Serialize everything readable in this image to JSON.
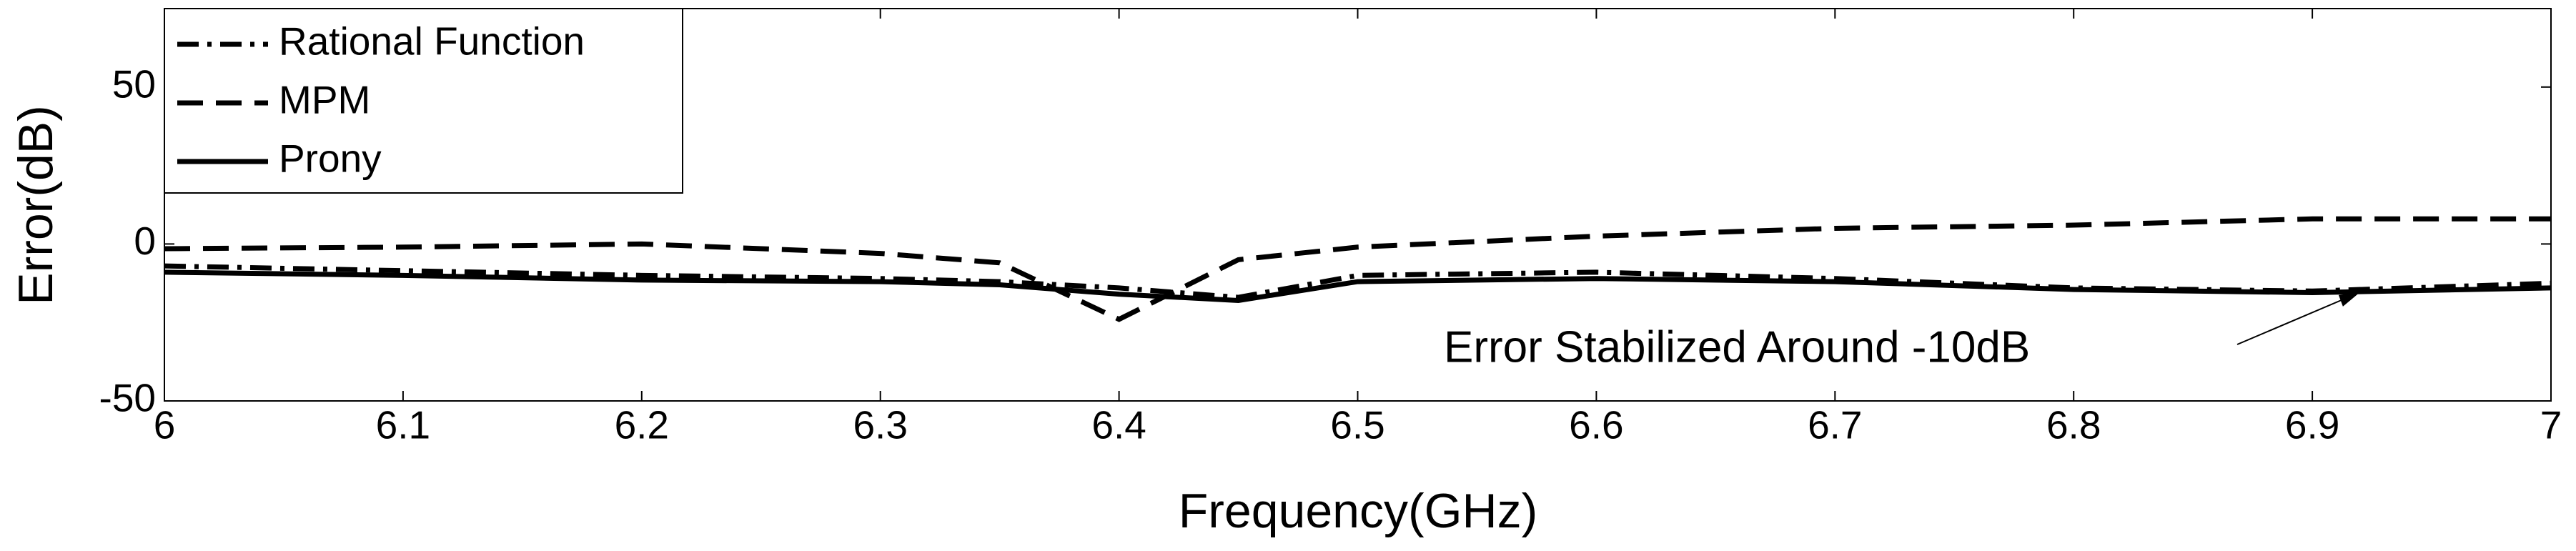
{
  "chart_data": {
    "type": "line",
    "xlabel": "Frequency(GHz)",
    "ylabel": "Error(dB)",
    "x": [
      6,
      6.1,
      6.2,
      6.3,
      6.35,
      6.4,
      6.45,
      6.5,
      6.6,
      6.7,
      6.8,
      6.9,
      7
    ],
    "series": [
      {
        "name": "Rational Function",
        "color": "#000000",
        "linestyle": "dashdot",
        "values": [
          -7,
          -8.5,
          -10,
          -11,
          -12,
          -14,
          -17,
          -10,
          -9,
          -11,
          -14,
          -15,
          -12.5
        ]
      },
      {
        "name": "MPM",
        "color": "#000000",
        "linestyle": "dashed",
        "values": [
          -1.5,
          -1,
          0,
          -3,
          -6,
          -24,
          -5,
          -1,
          2.5,
          5,
          6,
          8,
          8
        ]
      },
      {
        "name": "Prony",
        "color": "#000000",
        "linestyle": "solid",
        "values": [
          -9,
          -10,
          -11.5,
          -12,
          -13,
          -16,
          -18,
          -12,
          -11,
          -12,
          -14.5,
          -15.5,
          -14
        ]
      }
    ],
    "xlim": [
      6,
      7
    ],
    "xticks": [
      6,
      6.1,
      6.2,
      6.3,
      6.4,
      6.5,
      6.6,
      6.7,
      6.8,
      6.9,
      7
    ],
    "ylim": [
      -50,
      75
    ],
    "yticks": [
      -50,
      0,
      50
    ],
    "grid": false,
    "legend": "upper left",
    "annotation": {
      "text": "Error Stabilized Around -10dB",
      "x": 6.92,
      "y": -14
    }
  }
}
